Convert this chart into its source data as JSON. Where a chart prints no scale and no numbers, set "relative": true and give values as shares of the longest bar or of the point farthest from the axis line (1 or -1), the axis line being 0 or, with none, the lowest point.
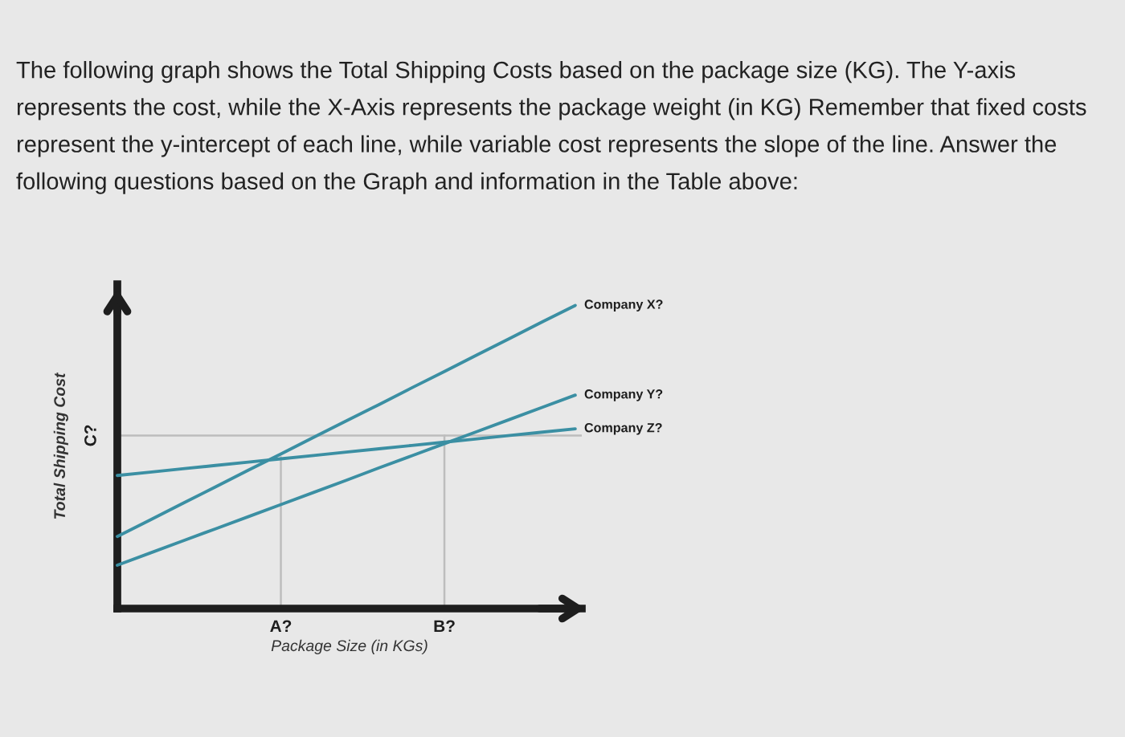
{
  "chart_data": {
    "type": "line",
    "relative": true,
    "title": "The following graph shows the Total Shipping Costs based on the package size (KG). The Y-axis represents the cost, while the X-Axis represents the package weight (in KG) Remember that fixed costs represent the y-intercept of each line, while variable cost represents the slope of the line. Answer the following questions based on the Graph and information in the Table above:",
    "xlabel": "Package Size (in KGs)",
    "ylabel": "Total Shipping Cost",
    "categories": [
      null,
      null,
      null,
      null,
      null,
      "A?",
      null,
      null,
      null,
      null,
      "B?",
      null,
      null,
      null,
      null
    ],
    "series": [
      {
        "color": "#bdbdbd",
        "x": [
          "A?",
          "A?"
        ],
        "values": [
          0,
          0.5
        ]
      },
      {
        "color": "#bdbdbd",
        "x": [
          "B?",
          "B?"
        ],
        "values": [
          0,
          0.571
        ]
      },
      {
        "name": "Company X?",
        "color": "#3b8fa3",
        "values": [
          0.238,
          0.292,
          0.347,
          0.401,
          0.456,
          0.51,
          0.565,
          0.619,
          0.673,
          0.728,
          0.782,
          0.837,
          0.891,
          0.946,
          1.0
        ]
      },
      {
        "name": "Company Y?",
        "color": "#3b8fa3",
        "values": [
          0.143,
          0.183,
          0.223,
          0.263,
          0.303,
          0.343,
          0.383,
          0.423,
          0.464,
          0.504,
          0.544,
          0.584,
          0.624,
          0.664,
          0.704
        ]
      },
      {
        "name": "Company Z?",
        "color": "#3b8fa3",
        "values": [
          0.439,
          0.45,
          0.461,
          0.472,
          0.483,
          0.494,
          0.505,
          0.516,
          0.527,
          0.538,
          0.549,
          0.56,
          0.571,
          0.582,
          0.593
        ]
      }
    ],
    "ref_lines": [
      {
        "axis": "y",
        "value": 0.571,
        "label": "C?",
        "color": "#bdbdbd"
      }
    ]
  }
}
